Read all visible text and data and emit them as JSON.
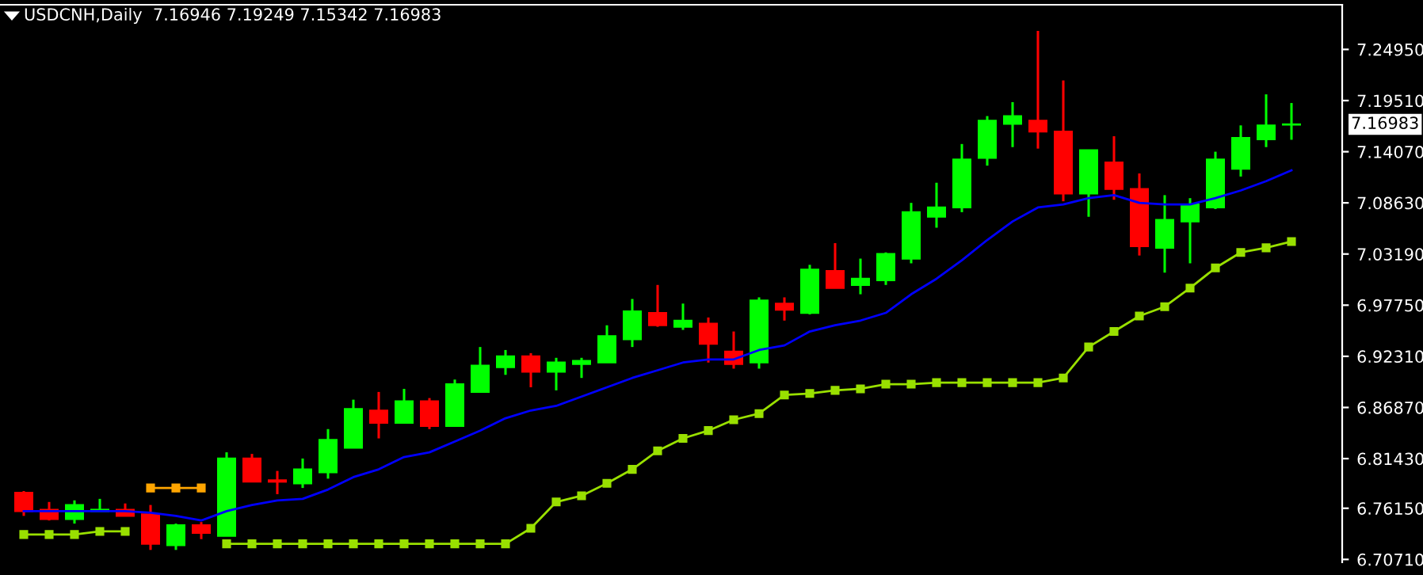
{
  "chart_data": {
    "type": "candlestick",
    "title": "USDCNH,Daily  7.16946 7.19249 7.15342 7.16983",
    "categories": [
      null,
      null,
      null,
      null,
      null,
      null,
      null,
      null,
      null,
      null,
      null,
      null,
      null,
      null,
      null,
      null,
      null,
      null,
      null,
      null,
      null,
      null,
      null,
      null,
      null,
      null,
      null,
      null,
      null,
      null,
      null,
      null,
      null,
      null,
      null,
      null,
      null,
      null,
      null,
      null,
      null,
      null,
      null,
      null,
      null,
      null,
      null,
      null,
      null,
      null,
      null
    ],
    "ohlc": [
      [
        6.7781,
        6.7798,
        6.7534,
        6.7584
      ],
      [
        6.76,
        6.7682,
        6.7485,
        6.7501
      ],
      [
        6.7501,
        6.7699,
        6.7452,
        6.765
      ],
      [
        6.7584,
        6.7715,
        6.7584,
        6.76
      ],
      [
        6.76,
        6.7666,
        6.7534,
        6.7534
      ],
      [
        6.7551,
        6.765,
        6.7172,
        6.7237
      ],
      [
        6.7221,
        6.7452,
        6.7172,
        6.7435
      ],
      [
        6.7435,
        6.7468,
        6.7287,
        6.7353
      ],
      [
        6.732,
        6.821,
        6.732,
        6.8144
      ],
      [
        6.8144,
        6.8193,
        6.7897,
        6.7897
      ],
      [
        6.7913,
        6.8012,
        6.7765,
        6.7897
      ],
      [
        6.788,
        6.8144,
        6.7831,
        6.8029
      ],
      [
        6.7996,
        6.8457,
        6.793,
        6.8342
      ],
      [
        6.8259,
        6.877,
        6.8259,
        6.8671
      ],
      [
        6.8655,
        6.8852,
        6.8358,
        6.8523
      ],
      [
        6.8523,
        6.8885,
        6.8523,
        6.8754
      ],
      [
        6.8754,
        6.8787,
        6.8457,
        6.849
      ],
      [
        6.849,
        6.8984,
        6.849,
        6.8935
      ],
      [
        6.8852,
        6.933,
        6.8852,
        6.9133
      ],
      [
        6.9116,
        6.9298,
        6.9034,
        6.9232
      ],
      [
        6.9232,
        6.9265,
        6.8902,
        6.9067
      ],
      [
        6.9067,
        6.9215,
        6.8869,
        6.9165
      ],
      [
        6.9149,
        6.9215,
        6.9001,
        6.9182
      ],
      [
        6.9165,
        6.9561,
        6.9165,
        6.9446
      ],
      [
        6.9413,
        6.9841,
        6.933,
        6.971
      ],
      [
        6.9693,
        6.999,
        6.9545,
        6.9561
      ],
      [
        6.9545,
        6.9792,
        6.9512,
        6.9611
      ],
      [
        6.9578,
        6.9644,
        6.9165,
        6.9363
      ],
      [
        6.9281,
        6.9495,
        6.91,
        6.9149
      ],
      [
        6.9165,
        6.9858,
        6.91,
        6.9825
      ],
      [
        6.9792,
        6.9858,
        6.9611,
        6.9726
      ],
      [
        6.9693,
        7.0204,
        6.9677,
        7.0154
      ],
      [
        7.0138,
        7.0435,
        6.9957,
        6.9957
      ],
      [
        6.999,
        7.027,
        6.9891,
        7.0056
      ],
      [
        7.0039,
        7.0336,
        6.999,
        7.0319
      ],
      [
        7.027,
        7.0863,
        7.022,
        7.0764
      ],
      [
        7.0715,
        7.1077,
        7.0599,
        7.0814
      ],
      [
        7.0814,
        7.1489,
        7.0764,
        7.1325
      ],
      [
        7.1341,
        7.1786,
        7.1259,
        7.1737
      ],
      [
        7.1704,
        7.1934,
        7.1456,
        7.1786
      ],
      [
        7.1737,
        7.2692,
        7.144,
        7.1621
      ],
      [
        7.1621,
        7.2165,
        7.088,
        7.0962
      ],
      [
        7.0962,
        7.1423,
        7.0715,
        7.1423
      ],
      [
        7.1292,
        7.1572,
        7.0896,
        7.1011
      ],
      [
        7.1011,
        7.1176,
        7.0303,
        7.0402
      ],
      [
        7.0385,
        7.0945,
        7.0121,
        7.0682
      ],
      [
        7.0665,
        7.0913,
        7.022,
        7.0847
      ],
      [
        7.0814,
        7.1407,
        7.0797,
        7.1325
      ],
      [
        7.1226,
        7.1687,
        7.1143,
        7.1555
      ],
      [
        7.1539,
        7.2017,
        7.1456,
        7.1687
      ],
      [
        7.16946,
        7.19249,
        7.15342,
        7.16983
      ]
    ],
    "colors": [
      "#ff0000",
      "#ff0000",
      "#00ff00",
      "#00ff00",
      "#ff0000",
      "#ff0000",
      "#00ff00",
      "#ff0000",
      "#00ff00",
      "#ff0000",
      "#ff0000",
      "#00ff00",
      "#00ff00",
      "#00ff00",
      "#ff0000",
      "#00ff00",
      "#ff0000",
      "#00ff00",
      "#00ff00",
      "#00ff00",
      "#ff0000",
      "#00ff00",
      "#00ff00",
      "#00ff00",
      "#00ff00",
      "#ff0000",
      "#00ff00",
      "#ff0000",
      "#ff0000",
      "#00ff00",
      "#ff0000",
      "#00ff00",
      "#ff0000",
      "#00ff00",
      "#00ff00",
      "#00ff00",
      "#00ff00",
      "#00ff00",
      "#00ff00",
      "#00ff00",
      "#ff0000",
      "#ff0000",
      "#00ff00",
      "#ff0000",
      "#ff0000",
      "#00ff00",
      "#00ff00",
      "#00ff00",
      "#00ff00",
      "#00ff00",
      "#00ff00"
    ],
    "series": [
      {
        "type": "line",
        "color": "#0000ff",
        "marker": "none",
        "values": [
          6.7584,
          6.7584,
          6.7584,
          6.7584,
          6.7584,
          6.7567,
          6.7534,
          6.7485,
          6.7584,
          6.765,
          6.7699,
          6.7715,
          6.7814,
          6.7946,
          6.8029,
          6.816,
          6.821,
          6.8325,
          6.8441,
          6.8572,
          6.8655,
          6.8704,
          6.8803,
          6.8902,
          6.9001,
          6.9083,
          6.9165,
          6.9198,
          6.9198,
          6.9298,
          6.9347,
          6.9495,
          6.9561,
          6.9611,
          6.9693,
          6.9891,
          7.0056,
          7.0253,
          7.0468,
          7.0665,
          7.0814,
          7.0847,
          7.0913,
          7.0945,
          7.0863,
          7.0847,
          7.0847,
          7.0913,
          7.0995,
          7.1094,
          7.1209
        ]
      },
      {
        "type": "line",
        "color": "#99e000",
        "marker": "square",
        "values": [
          6.7336,
          6.7336,
          6.7336,
          6.7369,
          6.7369,
          null,
          null,
          null,
          6.7237,
          6.7237,
          6.7237,
          6.7237,
          6.7237,
          6.7237,
          6.7237,
          6.7237,
          6.7237,
          6.7237,
          6.7237,
          6.7237,
          6.7402,
          6.7682,
          6.7748,
          6.788,
          6.8029,
          6.8226,
          6.8358,
          6.8441,
          6.8556,
          6.8622,
          6.882,
          6.8836,
          6.8869,
          6.8885,
          6.8935,
          6.8935,
          6.8951,
          6.8951,
          6.8951,
          6.8951,
          6.8951,
          6.9001,
          6.933,
          6.9495,
          6.966,
          6.9759,
          6.9957,
          7.0171,
          7.0336,
          7.0385,
          7.0451
        ]
      },
      {
        "type": "line",
        "color": "#ffa500",
        "marker": "square",
        "values": [
          null,
          null,
          null,
          null,
          null,
          6.7831,
          6.7831,
          6.7831,
          null,
          null,
          null,
          null,
          null,
          null,
          null,
          null,
          null,
          null,
          null,
          null,
          null,
          null,
          null,
          null,
          null,
          null,
          null,
          null,
          null,
          null,
          null,
          null,
          null,
          null,
          null,
          null,
          null,
          null,
          null,
          null,
          null,
          null,
          null,
          null,
          null,
          null,
          null,
          null,
          null,
          null,
          null
        ]
      }
    ],
    "ylim": [
      6.704,
      7.297
    ],
    "yticks": [
      {
        "value": 7.2495,
        "label": "7.24950"
      },
      {
        "value": 7.1951,
        "label": "7.19510"
      },
      {
        "value": 7.1407,
        "label": "7.14070"
      },
      {
        "value": 7.0863,
        "label": "7.08630"
      },
      {
        "value": 7.0319,
        "label": "7.03190"
      },
      {
        "value": 6.9775,
        "label": "6.97750"
      },
      {
        "value": 6.9231,
        "label": "6.92310"
      },
      {
        "value": 6.8687,
        "label": "6.86870"
      },
      {
        "value": 6.8143,
        "label": "6.81430"
      },
      {
        "value": 6.7615,
        "label": "6.76150"
      },
      {
        "value": 6.7071,
        "label": "6.70710"
      }
    ],
    "annotations": [
      "7.16983"
    ],
    "tick_labels": "y"
  }
}
